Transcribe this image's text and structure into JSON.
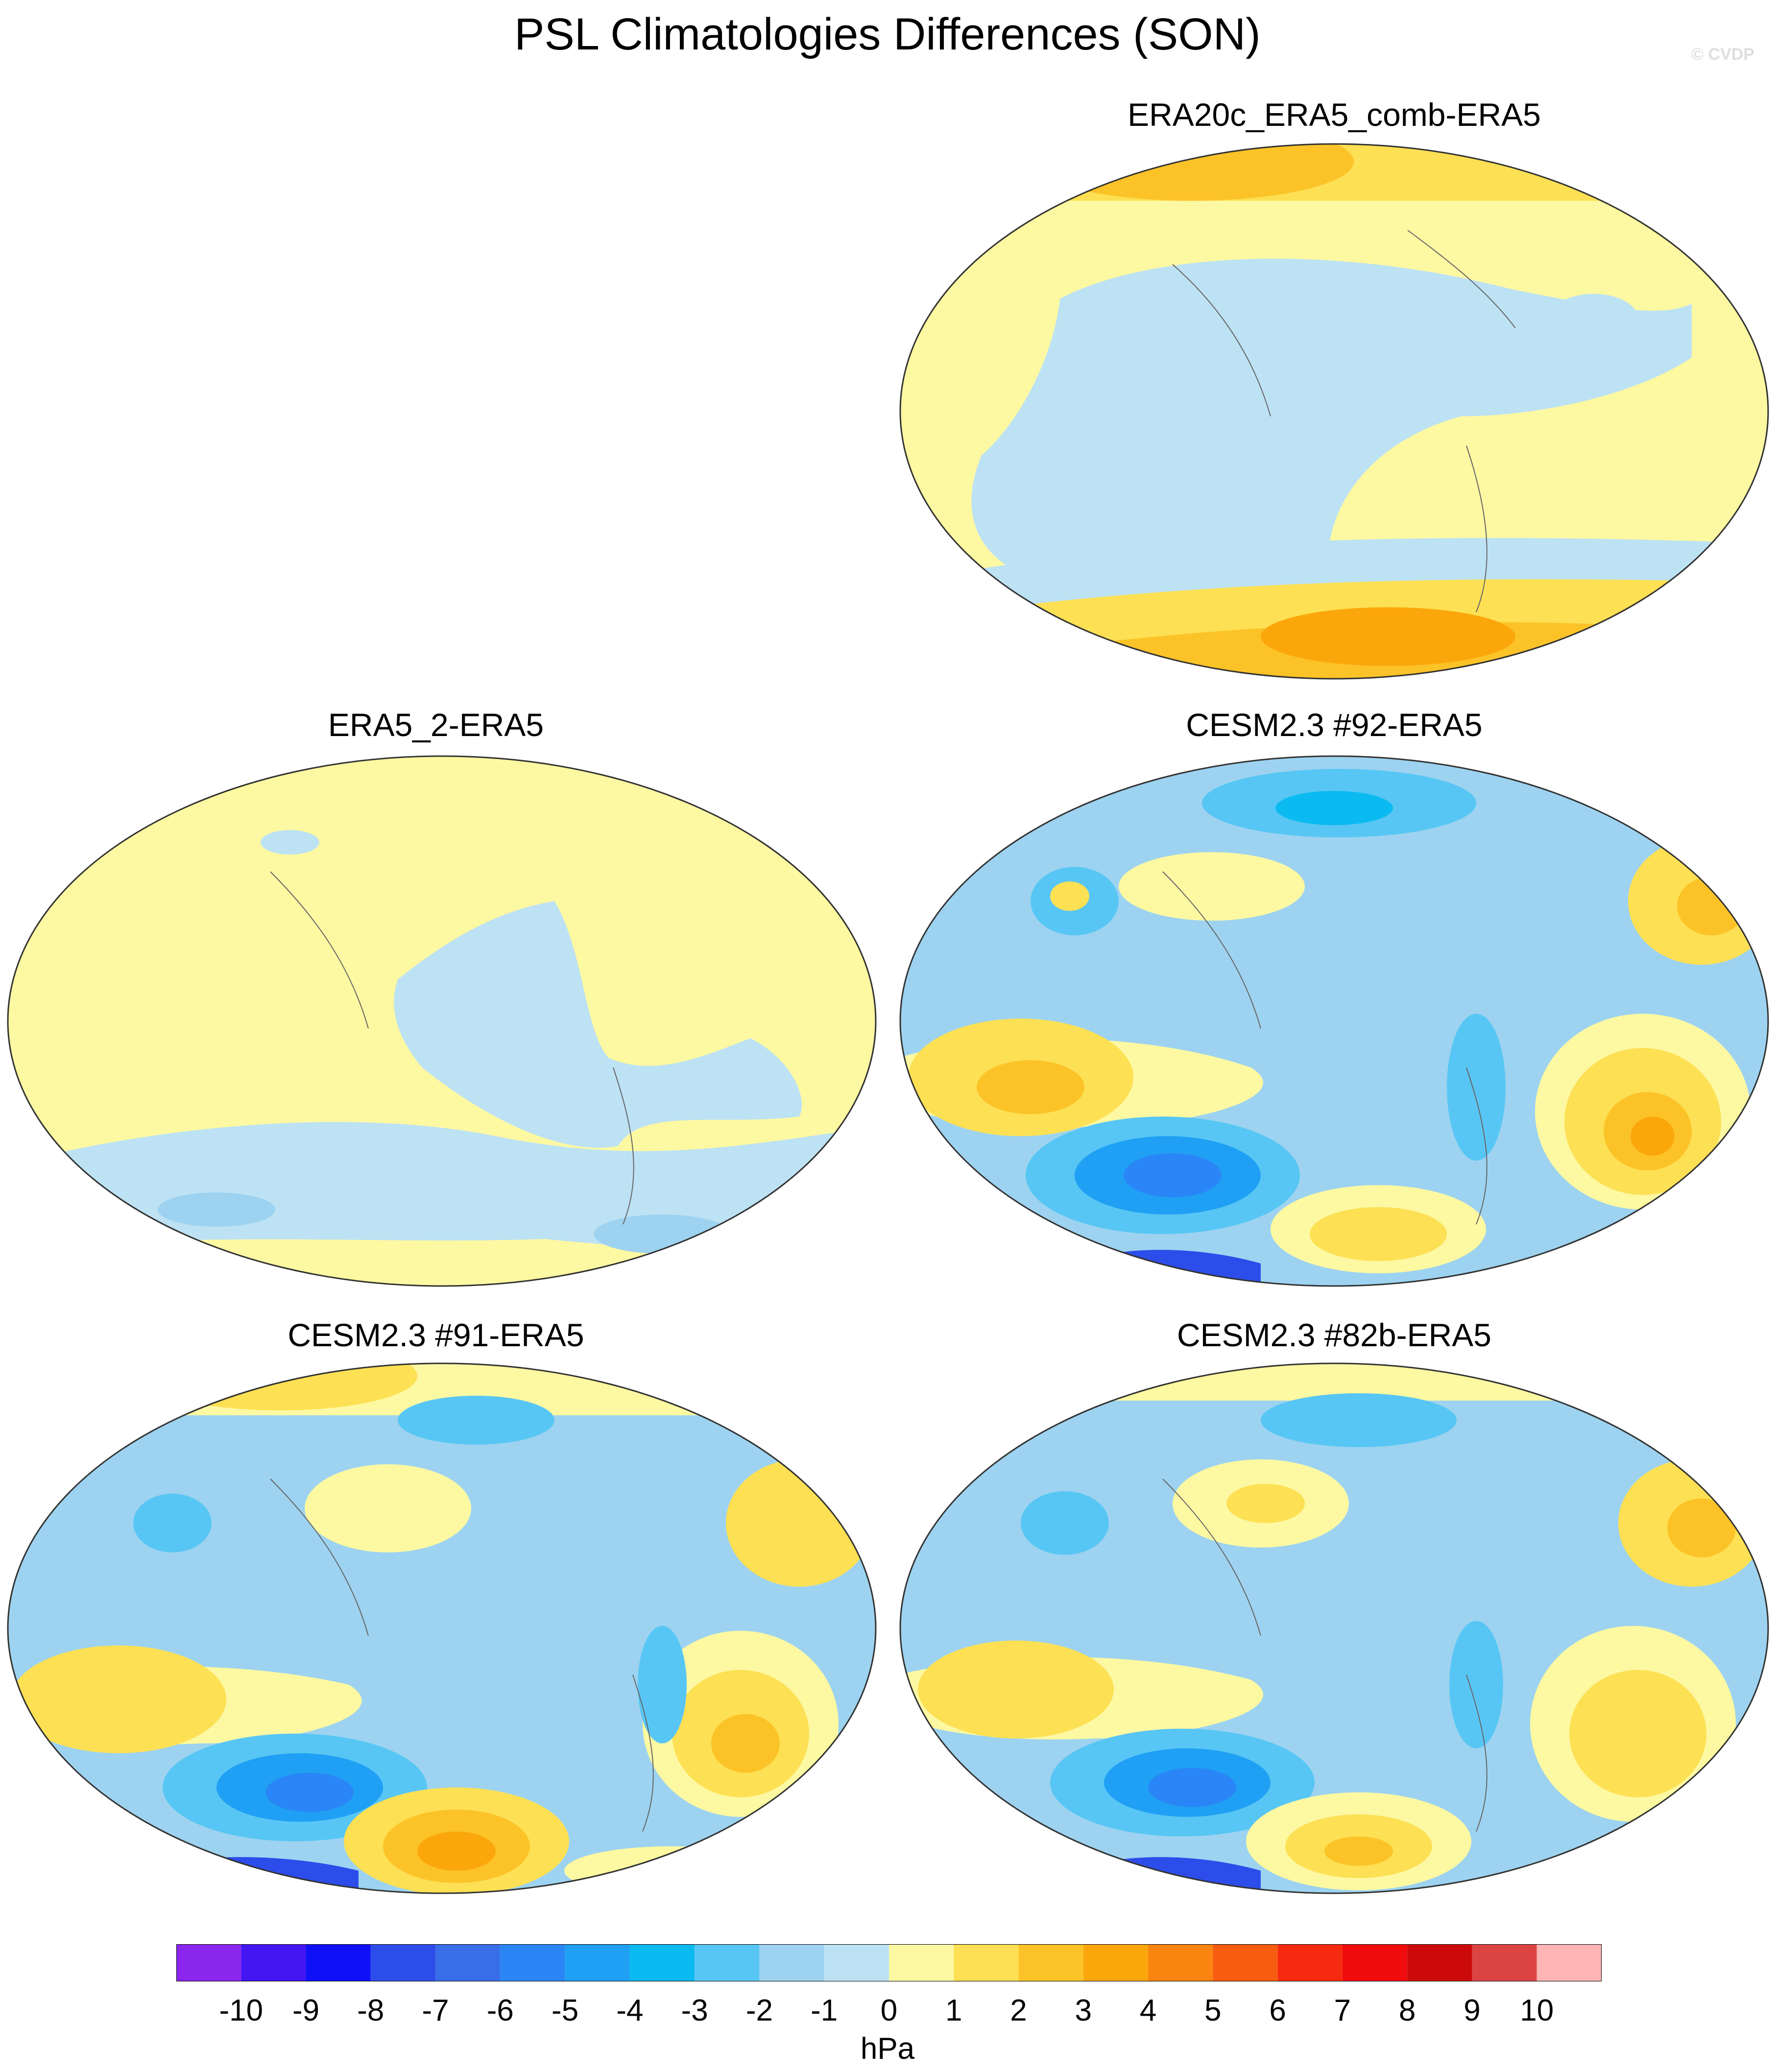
{
  "title": "PSL Climatologies Differences (SON)",
  "watermark": "© CVDP",
  "panels": [
    {
      "id": "p1",
      "title": "ERA20c_ERA5_comb-ERA5"
    },
    {
      "id": "p2",
      "title": "ERA5_2-ERA5"
    },
    {
      "id": "p3",
      "title": "CESM2.3 #92-ERA5"
    },
    {
      "id": "p4",
      "title": "CESM2.3 #91-ERA5"
    },
    {
      "id": "p5",
      "title": "CESM2.3 #82b-ERA5"
    }
  ],
  "colorbar": {
    "units": "hPa",
    "labels": [
      "-10",
      "-9",
      "-8",
      "-7",
      "-6",
      "-5",
      "-4",
      "-3",
      "-2",
      "-1",
      "0",
      "1",
      "2",
      "3",
      "4",
      "5",
      "6",
      "7",
      "8",
      "9",
      "10"
    ],
    "colors": [
      "#8a26ee",
      "#4316f2",
      "#1010f8",
      "#2d4dea",
      "#386ee8",
      "#2a86f6",
      "#1fa0f4",
      "#0cbaf2",
      "#58c6f4",
      "#9dd3f0",
      "#bde2f4",
      "#fdf8a2",
      "#fde054",
      "#fcc328",
      "#fba70c",
      "#fb8410",
      "#f85c10",
      "#f62a0e",
      "#f00c0c",
      "#cc0a0a",
      "#dc4444",
      "#fcb4b4"
    ]
  }
}
